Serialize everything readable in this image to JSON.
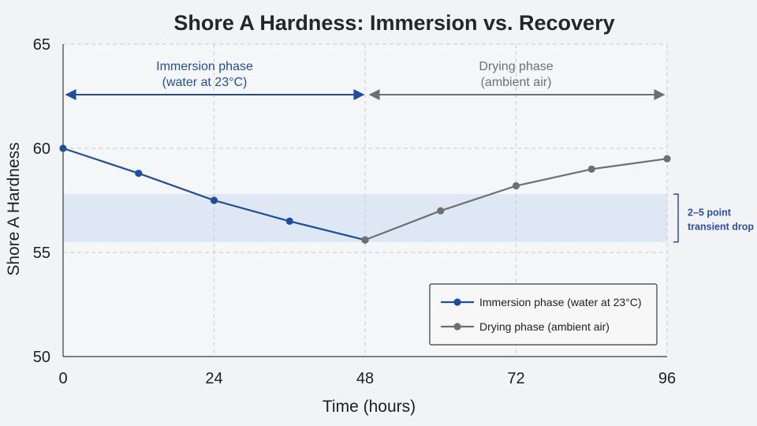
{
  "chart_data": {
    "type": "line",
    "title": "Shore A Hardness: Immersion vs. Recovery",
    "xlabel": "Time (hours)",
    "ylabel": "Shore A Hardness",
    "xlim": [
      0,
      96
    ],
    "ylim": [
      50,
      65
    ],
    "xticks": [
      0,
      24,
      48,
      72,
      96
    ],
    "yticks": [
      50,
      55,
      60,
      65
    ],
    "grid": true,
    "legend_position": "bottom-right",
    "series": [
      {
        "name": "Immersion phase (water at 23°C)",
        "color": "#1f4e9e",
        "x": [
          0,
          12,
          24,
          36,
          48
        ],
        "y": [
          60.0,
          58.8,
          57.5,
          56.5,
          55.6
        ]
      },
      {
        "name": "Drying phase (ambient air)",
        "color": "#6f6f6f",
        "x": [
          48,
          60,
          72,
          84,
          96
        ],
        "y": [
          55.6,
          57.0,
          58.2,
          59.0,
          59.5
        ]
      }
    ],
    "annotations": {
      "phases": [
        {
          "line1": "Immersion phase",
          "line2": "(water at 23°C)",
          "x_range": [
            0,
            48
          ],
          "color": "#1f4e9e"
        },
        {
          "line1": "Drying phase",
          "line2": "(ambient air)",
          "x_range": [
            48,
            96
          ],
          "color": "#6f6f6f"
        }
      ],
      "band": {
        "y_range": [
          55.5,
          57.8
        ],
        "line1": "2–5 point",
        "line2": "transient drop",
        "color": "#dbe5f3"
      }
    }
  }
}
